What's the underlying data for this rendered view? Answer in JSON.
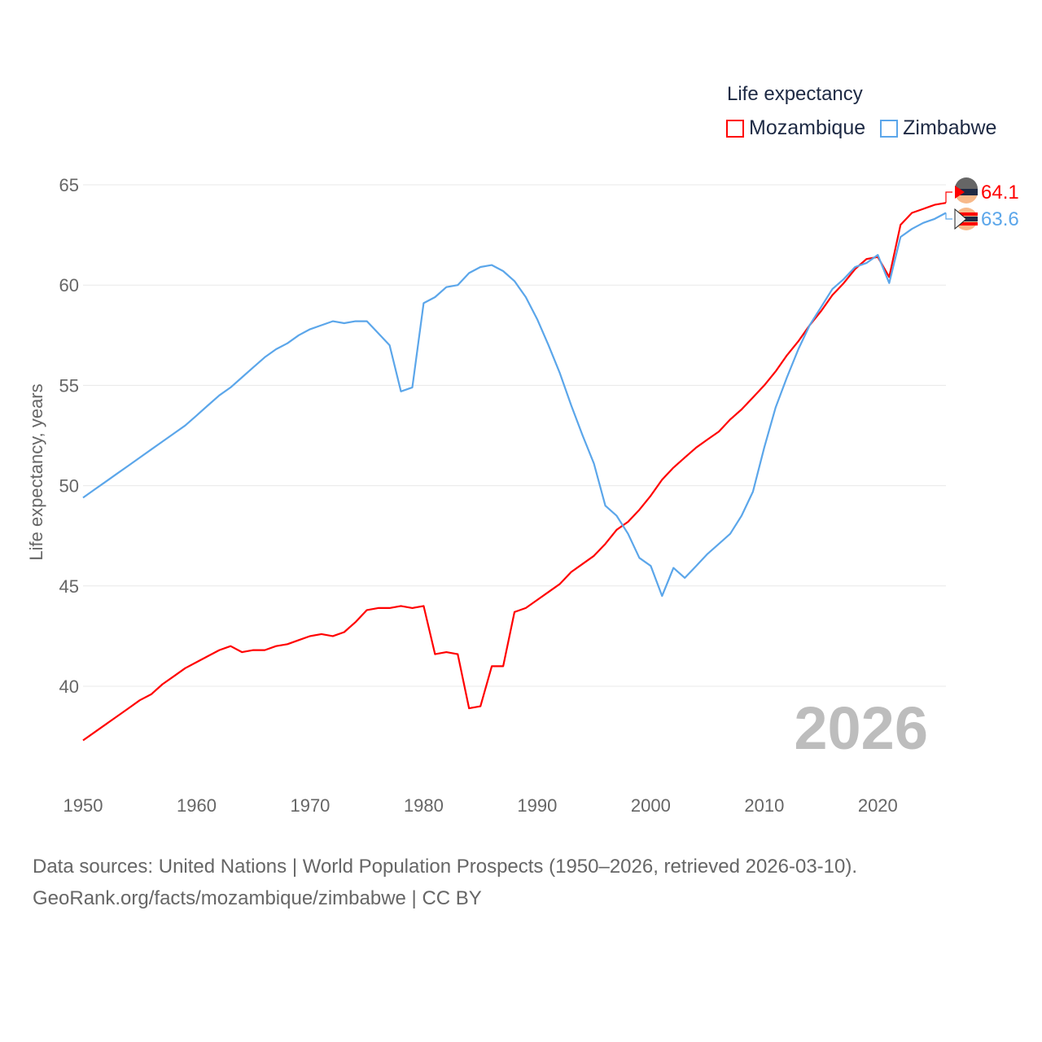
{
  "chart_data": {
    "type": "line",
    "title": "Life expectancy",
    "xlabel": "",
    "ylabel": "Life expectancy, years",
    "xlim": [
      1950,
      2026
    ],
    "ylim": [
      35,
      65
    ],
    "x_ticks": [
      "1950",
      "1960",
      "1970",
      "1980",
      "1990",
      "2000",
      "2010",
      "2020"
    ],
    "y_ticks": [
      "40",
      "45",
      "50",
      "55",
      "60",
      "65"
    ],
    "grid": true,
    "legend_position": "top-right",
    "year_watermark": "2026",
    "x": [
      1950,
      1951,
      1952,
      1953,
      1954,
      1955,
      1956,
      1957,
      1958,
      1959,
      1960,
      1961,
      1962,
      1963,
      1964,
      1965,
      1966,
      1967,
      1968,
      1969,
      1970,
      1971,
      1972,
      1973,
      1974,
      1975,
      1976,
      1977,
      1978,
      1979,
      1980,
      1981,
      1982,
      1983,
      1984,
      1985,
      1986,
      1987,
      1988,
      1989,
      1990,
      1991,
      1992,
      1993,
      1994,
      1995,
      1996,
      1997,
      1998,
      1999,
      2000,
      2001,
      2002,
      2003,
      2004,
      2005,
      2006,
      2007,
      2008,
      2009,
      2010,
      2011,
      2012,
      2013,
      2014,
      2015,
      2016,
      2017,
      2018,
      2019,
      2020,
      2021,
      2022,
      2023,
      2024,
      2025,
      2026
    ],
    "series": [
      {
        "name": "Mozambique",
        "color": "#ff0000",
        "end_label": "64.1",
        "values": [
          37.3,
          37.7,
          38.1,
          38.5,
          38.9,
          39.3,
          39.6,
          40.1,
          40.5,
          40.9,
          41.2,
          41.5,
          41.8,
          42.0,
          41.7,
          41.8,
          41.8,
          42.0,
          42.1,
          42.3,
          42.5,
          42.6,
          42.5,
          42.7,
          43.2,
          43.8,
          43.9,
          43.9,
          44.0,
          43.9,
          44.0,
          41.6,
          41.7,
          41.6,
          38.9,
          39.0,
          41.0,
          41.0,
          43.7,
          43.9,
          44.3,
          44.7,
          45.1,
          45.7,
          46.1,
          46.5,
          47.1,
          47.8,
          48.2,
          48.8,
          49.5,
          50.3,
          50.9,
          51.4,
          51.9,
          52.3,
          52.7,
          53.3,
          53.8,
          54.4,
          55.0,
          55.7,
          56.5,
          57.2,
          58.0,
          58.7,
          59.5,
          60.1,
          60.8,
          61.3,
          61.4,
          60.4,
          63.0,
          63.6,
          63.8,
          64.0,
          64.1
        ]
      },
      {
        "name": "Zimbabwe",
        "color": "#5ba6ea",
        "end_label": "63.6",
        "values": [
          49.4,
          49.8,
          50.2,
          50.6,
          51.0,
          51.4,
          51.8,
          52.2,
          52.6,
          53.0,
          53.5,
          54.0,
          54.5,
          54.9,
          55.4,
          55.9,
          56.4,
          56.8,
          57.1,
          57.5,
          57.8,
          58.0,
          58.2,
          58.1,
          58.2,
          58.2,
          57.6,
          57.0,
          54.7,
          54.9,
          59.1,
          59.4,
          59.9,
          60.0,
          60.6,
          60.9,
          61.0,
          60.7,
          60.2,
          59.4,
          58.3,
          57.0,
          55.6,
          54.0,
          52.5,
          51.1,
          49.0,
          48.5,
          47.6,
          46.4,
          46.0,
          44.5,
          45.9,
          45.4,
          46.0,
          46.6,
          47.1,
          47.6,
          48.5,
          49.7,
          51.9,
          53.9,
          55.4,
          56.8,
          58.0,
          58.9,
          59.8,
          60.3,
          60.9,
          61.1,
          61.5,
          60.1,
          62.4,
          62.8,
          63.1,
          63.3,
          63.6
        ]
      }
    ]
  },
  "footer": {
    "line1": "Data sources: United Nations | World Population Prospects (1950–2026, retrieved 2026-03-10).",
    "line2": "GeoRank.org/facts/mozambique/zimbabwe | CC BY"
  }
}
